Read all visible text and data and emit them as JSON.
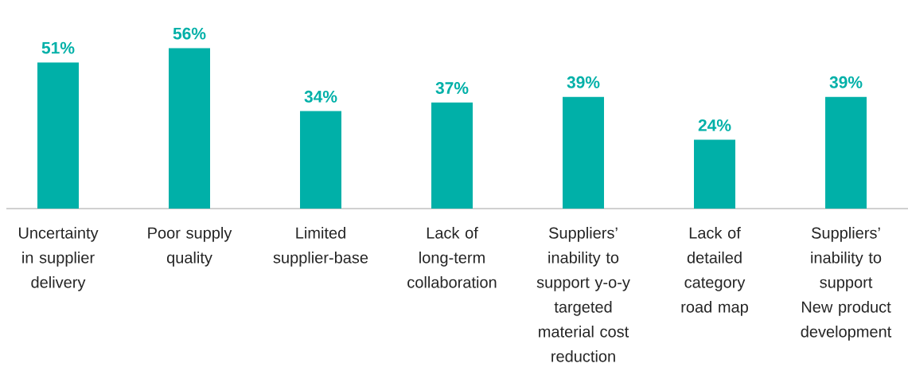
{
  "chart_data": {
    "type": "bar",
    "categories": [
      "Uncertainty in supplier delivery",
      "Poor supply quality",
      "Limited supplier-base",
      "Lack of long-term collaboration",
      "Suppliers’ inability to support y-o-y targeted material cost reduction",
      "Lack of detailed category road map",
      "Suppliers’ inability to support New product development"
    ],
    "values": [
      51,
      56,
      34,
      37,
      39,
      24,
      39
    ],
    "value_labels": [
      "51%",
      "56%",
      "34%",
      "37%",
      "39%",
      "24%",
      "39%"
    ],
    "color": "#00b0a8"
  }
}
